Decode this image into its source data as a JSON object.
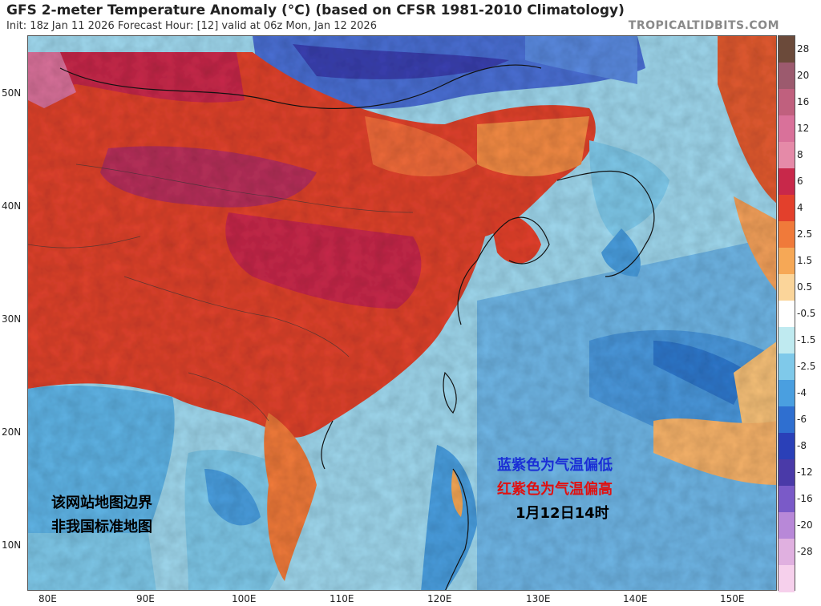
{
  "header": {
    "title": "GFS 2-meter Temperature Anomaly (°C) (based on CFSR 1981-2010 Climatology)",
    "subtitle": "Init: 18z Jan 11 2026   Forecast Hour: [12]   valid at 06z Mon, Jan 12 2026",
    "source": "TROPICALTIDBITS.COM"
  },
  "axes": {
    "lat_labels": [
      "50N",
      "40N",
      "30N",
      "20N",
      "10N"
    ],
    "lon_labels": [
      "80E",
      "90E",
      "100E",
      "110E",
      "120E",
      "130E",
      "140E",
      "150E"
    ]
  },
  "colorbar": {
    "labels": [
      "28",
      "20",
      "16",
      "12",
      "8",
      "6",
      "4",
      "2.5",
      "1.5",
      "0.5",
      "-0.5",
      "-1.5",
      "-2.5",
      "-4",
      "-6",
      "-8",
      "-12",
      "-16",
      "-20",
      "-28"
    ],
    "colors": [
      "#6b4a3a",
      "#9c5a6e",
      "#c0607e",
      "#d9719a",
      "#e58aa8",
      "#c8284a",
      "#e3402c",
      "#f07a3a",
      "#f6a856",
      "#fbd59a",
      "#ffffff",
      "#bfeaf0",
      "#7fc9ea",
      "#4a9fe0",
      "#2f6fd0",
      "#2a40b8",
      "#4a3aa8",
      "#7a5ac8",
      "#b888d8",
      "#e0b0e0",
      "#f6d0ec"
    ]
  },
  "annotations": {
    "cold": "蓝紫色为气温偏低",
    "warm": "红紫色为气温偏高",
    "time": "1月12日14时",
    "border_line1": "该网站地图边界",
    "border_line2": "非我国标准地图"
  }
}
